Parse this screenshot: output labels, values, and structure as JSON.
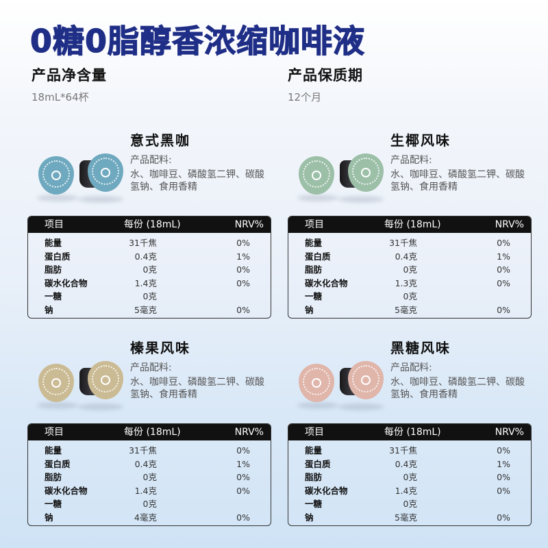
{
  "title": "0糖0脂醇香浓缩咖啡液",
  "net_content": {
    "label": "产品净含量",
    "value": "18mL*64杯"
  },
  "shelf_life": {
    "label": "产品保质期",
    "value": "12个月"
  },
  "table_headers": {
    "item": "项目",
    "per_serving": "每份 (18mL)",
    "nrv": "NRV%"
  },
  "products": [
    {
      "name": "意式黑咖",
      "ingredients_label": "产品配料:",
      "ingredients": "水、咖啡豆、磷酸氢二钾、碳酸氢钠、食用香精",
      "lid_color": "#6fa9bf",
      "nutrition": [
        {
          "item": "能量",
          "value": "31千焦",
          "nrv": "0%"
        },
        {
          "item": "蛋白质",
          "value": "0.4克",
          "nrv": "1%"
        },
        {
          "item": "脂肪",
          "value": "0克",
          "nrv": "0%"
        },
        {
          "item": "碳水化合物",
          "value": "1.4克",
          "nrv": "0%"
        },
        {
          "item": "一糖",
          "value": "0克",
          "nrv": ""
        },
        {
          "item": "钠",
          "value": "5毫克",
          "nrv": "0%"
        }
      ]
    },
    {
      "name": "生椰风味",
      "ingredients_label": "产品配料:",
      "ingredients": "水、咖啡豆、磷酸氢二钾、碳酸氢钠、食用香精",
      "lid_color": "#9cbfa8",
      "nutrition": [
        {
          "item": "能量",
          "value": "31千焦",
          "nrv": "0%"
        },
        {
          "item": "蛋白质",
          "value": "0.4克",
          "nrv": "1%"
        },
        {
          "item": "脂肪",
          "value": "0克",
          "nrv": "0%"
        },
        {
          "item": "碳水化合物",
          "value": "1.3克",
          "nrv": "0%"
        },
        {
          "item": "一糖",
          "value": "0克",
          "nrv": ""
        },
        {
          "item": "钠",
          "value": "5毫克",
          "nrv": "0%"
        }
      ]
    },
    {
      "name": "榛果风味",
      "ingredients_label": "产品配料:",
      "ingredients": "水、咖啡豆、磷酸氢二钾、碳酸氢钠、食用香精",
      "lid_color": "#cbbb94",
      "nutrition": [
        {
          "item": "能量",
          "value": "31千焦",
          "nrv": "0%"
        },
        {
          "item": "蛋白质",
          "value": "0.4克",
          "nrv": "1%"
        },
        {
          "item": "脂肪",
          "value": "0克",
          "nrv": "0%"
        },
        {
          "item": "碳水化合物",
          "value": "1.4克",
          "nrv": "0%"
        },
        {
          "item": "一糖",
          "value": "0克",
          "nrv": ""
        },
        {
          "item": "钠",
          "value": "4毫克",
          "nrv": "0%"
        }
      ]
    },
    {
      "name": "黑糖风味",
      "ingredients_label": "产品配料:",
      "ingredients": "水、咖啡豆、磷酸氢二钾、碳酸氢钠、食用香精",
      "lid_color": "#e0b5aa",
      "nutrition": [
        {
          "item": "能量",
          "value": "31千焦",
          "nrv": "0%"
        },
        {
          "item": "蛋白质",
          "value": "0.4克",
          "nrv": "1%"
        },
        {
          "item": "脂肪",
          "value": "0克",
          "nrv": "0%"
        },
        {
          "item": "碳水化合物",
          "value": "1.4克",
          "nrv": "0%"
        },
        {
          "item": "一糖",
          "value": "0克",
          "nrv": ""
        },
        {
          "item": "钠",
          "value": "5毫克",
          "nrv": "0%"
        }
      ]
    }
  ]
}
